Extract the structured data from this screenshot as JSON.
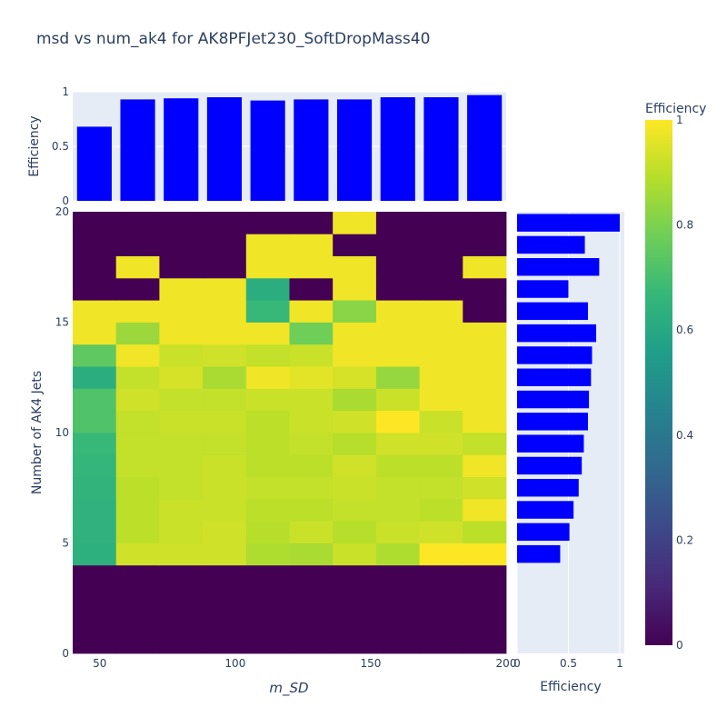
{
  "chart_data": {
    "type": "heatmap",
    "title": "msd vs num_ak4 for AK8PFJet230_SoftDropMass40",
    "xlabel": "m_SD",
    "ylabel": "Number of AK4 Jets",
    "x_ticks": [
      "50",
      "100",
      "150",
      "200"
    ],
    "y_ticks": [
      "0",
      "5",
      "10",
      "15",
      "20"
    ],
    "xlim": [
      40,
      200
    ],
    "ylim": [
      0,
      20
    ],
    "x_bin_edges": [
      40,
      56,
      72,
      88,
      104,
      120,
      136,
      152,
      168,
      184,
      200
    ],
    "y_bin_edges": [
      0,
      4,
      5,
      6,
      7,
      8,
      9,
      10,
      11,
      12,
      13,
      14,
      15,
      16,
      17,
      18,
      19,
      20
    ],
    "z": [
      [
        0,
        0,
        0,
        0,
        0,
        0,
        0,
        0,
        0,
        0
      ],
      [
        0.63,
        0.93,
        0.93,
        0.93,
        0.88,
        0.87,
        0.92,
        0.88,
        1.0,
        1.0
      ],
      [
        0.64,
        0.9,
        0.92,
        0.93,
        0.89,
        0.92,
        0.89,
        0.92,
        0.93,
        0.9
      ],
      [
        0.64,
        0.9,
        0.92,
        0.92,
        0.9,
        0.9,
        0.91,
        0.91,
        0.9,
        0.98
      ],
      [
        0.65,
        0.9,
        0.91,
        0.92,
        0.91,
        0.91,
        0.92,
        0.91,
        0.91,
        0.93
      ],
      [
        0.66,
        0.91,
        0.91,
        0.92,
        0.9,
        0.9,
        0.93,
        0.9,
        0.9,
        0.98
      ],
      [
        0.67,
        0.91,
        0.91,
        0.91,
        0.9,
        0.91,
        0.89,
        0.93,
        0.93,
        0.91
      ],
      [
        0.72,
        0.91,
        0.92,
        0.92,
        0.9,
        0.92,
        0.93,
        1.0,
        0.92,
        0.98
      ],
      [
        0.72,
        0.93,
        0.91,
        0.91,
        0.92,
        0.92,
        0.87,
        0.92,
        0.98,
        0.98
      ],
      [
        0.62,
        0.91,
        0.94,
        0.87,
        0.98,
        0.96,
        0.94,
        0.84,
        0.98,
        0.98
      ],
      [
        0.75,
        0.98,
        0.92,
        0.93,
        0.91,
        0.92,
        0.98,
        0.98,
        0.98,
        0.98
      ],
      [
        0.98,
        0.85,
        0.98,
        0.98,
        0.98,
        0.78,
        0.98,
        0.98,
        0.98,
        0.98
      ],
      [
        0.98,
        0.98,
        0.98,
        0.98,
        0.67,
        0.98,
        0.82,
        0.98,
        0.98,
        0
      ],
      [
        0,
        0,
        0.98,
        0.98,
        0.62,
        0,
        0.98,
        0,
        0,
        0
      ],
      [
        0,
        0.98,
        0,
        0,
        0.98,
        0.98,
        0.98,
        0,
        0,
        0.98
      ],
      [
        0,
        0,
        0,
        0,
        0.98,
        0.98,
        0,
        0,
        0,
        0
      ],
      [
        0,
        0,
        0,
        0,
        0,
        0,
        0.98,
        0,
        0,
        0
      ]
    ],
    "top_marginal": {
      "ylabel": "Efficiency",
      "y_ticks": [
        "0",
        "0.5",
        "1"
      ],
      "ylim": [
        0,
        1
      ],
      "values": [
        0.68,
        0.93,
        0.94,
        0.95,
        0.92,
        0.93,
        0.93,
        0.95,
        0.95,
        0.97
      ]
    },
    "right_marginal": {
      "xlabel": "Efficiency",
      "x_ticks": [
        "0",
        "0.5",
        "1"
      ],
      "xlim": [
        0,
        1
      ],
      "y_bins": [
        4,
        5,
        6,
        7,
        8,
        9,
        10,
        11,
        12,
        13,
        14,
        15,
        16,
        17,
        18,
        19
      ],
      "values": [
        0.42,
        0.51,
        0.55,
        0.6,
        0.63,
        0.65,
        0.69,
        0.7,
        0.72,
        0.73,
        0.77,
        0.69,
        0.5,
        0.8,
        0.66,
        1.0
      ]
    },
    "colorbar": {
      "title": "Efficiency",
      "ticks": [
        "0",
        "0.2",
        "0.4",
        "0.6",
        "0.8",
        "1"
      ],
      "range": [
        0,
        1
      ],
      "colorscale": "Viridis"
    },
    "colors": {
      "bar": "#0000ff",
      "plot_bg": "#e5ecf6",
      "text": "#2a3f5f"
    }
  }
}
